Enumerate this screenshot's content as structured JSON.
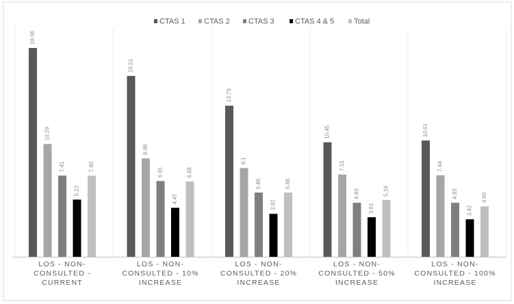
{
  "chart_data": {
    "type": "bar",
    "title": "",
    "xlabel": "",
    "ylabel": "",
    "grid": false,
    "legend_position": "top",
    "ylim": [
      0,
      20
    ],
    "categories": [
      [
        "LOS - NON-",
        "CONSULTED -",
        "CURRENT"
      ],
      [
        "LOS - NON-",
        "CONSULTED - 10%",
        "INCREASE"
      ],
      [
        "LOS - NON-",
        "CONSULTED - 20%",
        "INCREASE"
      ],
      [
        "LOS - NON-",
        "CONSULTED - 50%",
        "INCREASE"
      ],
      [
        "LOS - NON-",
        "CONSULTED - 100%",
        "INCREASE"
      ]
    ],
    "series": [
      {
        "name": "CTAS 1",
        "color": "#595959",
        "values": [
          19.06,
          16.51,
          13.79,
          10.45,
          10.61
        ],
        "labels": [
          "19.06",
          "16.51",
          "13.79",
          "10.45",
          "10.61"
        ]
      },
      {
        "name": "CTAS 2",
        "color": "#a6a6a6",
        "values": [
          10.29,
          8.98,
          8.1,
          7.51,
          7.44
        ],
        "labels": [
          "10.29",
          "8.98",
          "8.1",
          "7.51",
          "7.44"
        ]
      },
      {
        "name": "CTAS 3",
        "color": "#7f7f7f",
        "values": [
          7.41,
          6.91,
          5.86,
          4.93,
          4.93
        ],
        "labels": [
          "7.41",
          "6.91",
          "5.86",
          "4.93",
          "4.93"
        ]
      },
      {
        "name": "CTAS 4 & 5",
        "color": "#000000",
        "values": [
          5.22,
          4.47,
          3.92,
          3.61,
          3.42
        ],
        "labels": [
          "5.22",
          "4.47",
          "3.92",
          "3.61",
          "3.42"
        ]
      },
      {
        "name": "Total",
        "color": "#bfbfbf",
        "values": [
          7.4,
          6.88,
          5.86,
          5.19,
          4.6
        ],
        "labels": [
          "7.40",
          "6.88",
          "5.86",
          "5.19",
          "4.60"
        ]
      }
    ]
  }
}
